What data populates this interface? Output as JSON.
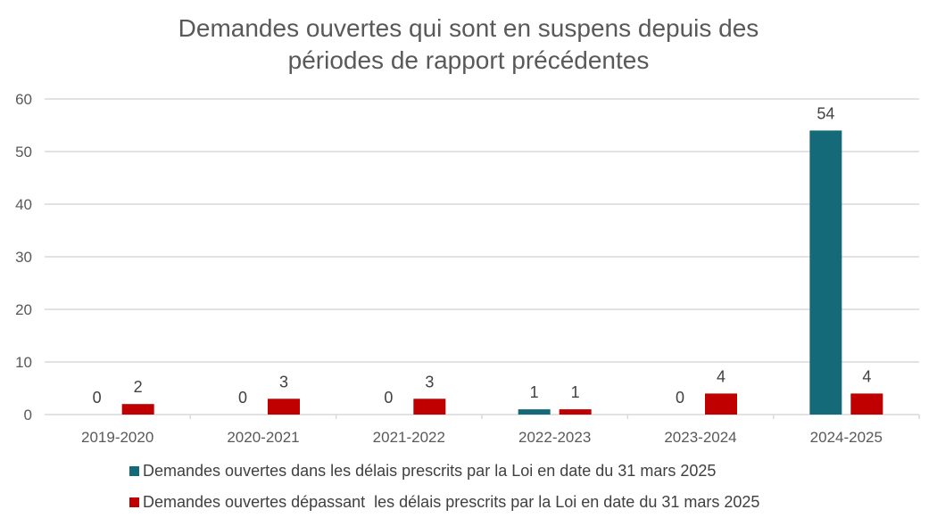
{
  "chart_data": {
    "type": "bar",
    "title_lines": [
      "Demandes ouvertes qui sont en suspens depuis des",
      "périodes de rapport précédentes"
    ],
    "categories": [
      "2019-2020",
      "2020-2021",
      "2021-2022",
      "2022-2023",
      "2023-2024",
      "2024-2025"
    ],
    "series": [
      {
        "name": "Demandes ouvertes dans les délais prescrits par la Loi en date du 31 mars 2025",
        "color": "#156a79",
        "values": [
          0,
          0,
          0,
          1,
          0,
          54
        ]
      },
      {
        "name": "Demandes ouvertes dépassant  les délais prescrits par la Loi en date du 31 mars 2025",
        "color": "#c00000",
        "values": [
          2,
          3,
          3,
          1,
          4,
          4
        ]
      }
    ],
    "ylim": [
      0,
      60
    ],
    "yticks": [
      0,
      10,
      20,
      30,
      40,
      50,
      60
    ],
    "grid": true,
    "legend_position": "bottom",
    "xlabel": "",
    "ylabel": ""
  }
}
